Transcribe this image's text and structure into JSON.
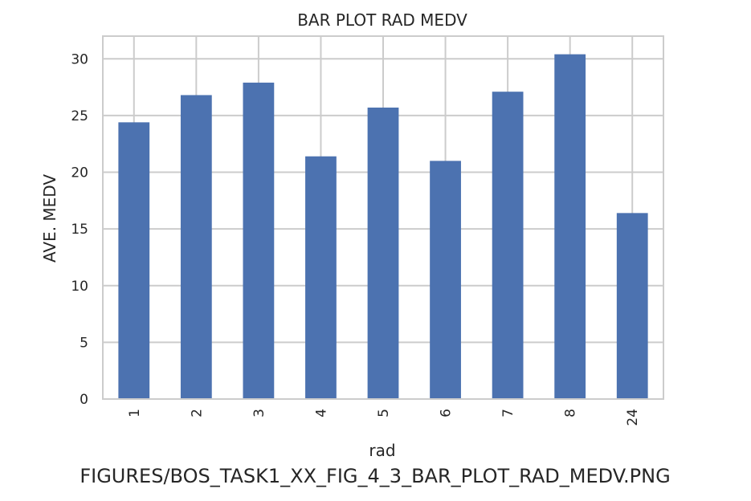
{
  "chart_data": {
    "type": "bar",
    "title": "BAR PLOT RAD MEDV",
    "xlabel": "rad",
    "ylabel": "AVE. MEDV",
    "categories": [
      "1",
      "2",
      "3",
      "4",
      "5",
      "6",
      "7",
      "8",
      "24"
    ],
    "values": [
      24.4,
      26.8,
      27.9,
      21.4,
      25.7,
      21.0,
      27.1,
      30.4,
      16.4
    ],
    "ylim": [
      0,
      32
    ],
    "yticks": [
      0,
      5,
      10,
      15,
      20,
      25,
      30
    ],
    "grid": true,
    "bar_color": "#4c72b0",
    "grid_color": "#cccccc",
    "x_tick_rotation": "vertical"
  },
  "caption": "FIGURES/BOS_TASK1_XX_FIG_4_3_BAR_PLOT_RAD_MEDV.PNG"
}
